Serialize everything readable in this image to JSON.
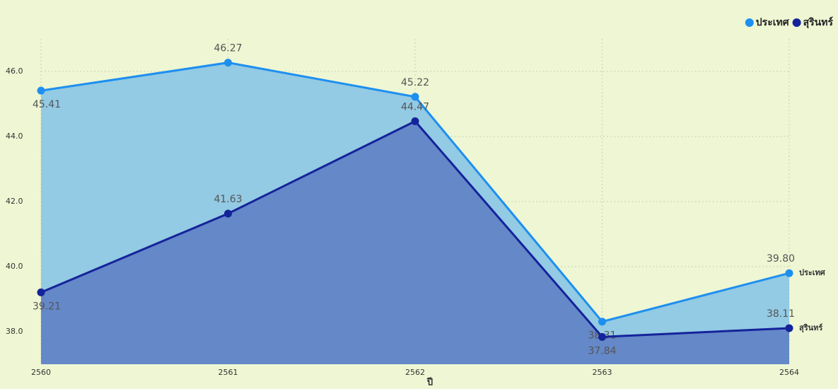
{
  "chart_data": {
    "type": "area",
    "x_label": "ปี",
    "categories": [
      "2560",
      "2561",
      "2562",
      "2563",
      "2564"
    ],
    "series": [
      {
        "name": "ประเทศ",
        "color": "#1e8fef",
        "fill": "#93cae4",
        "values": [
          45.41,
          46.27,
          45.22,
          38.31,
          39.8
        ],
        "value_labels": [
          "45.41",
          "46.27",
          "45.22",
          "38.31",
          "39.80"
        ]
      },
      {
        "name": "สุรินทร์",
        "color": "#15239a",
        "fill": "#6488c8",
        "values": [
          39.21,
          41.63,
          44.47,
          37.84,
          38.11
        ],
        "value_labels": [
          "39.21",
          "41.63",
          "44.47",
          "37.84",
          "38.11"
        ]
      }
    ],
    "ylim": [
      37,
      47
    ],
    "yticks": [
      {
        "value": 38,
        "label": "38.0"
      },
      {
        "value": 40,
        "label": "40.0"
      },
      {
        "value": 42,
        "label": "42.0"
      },
      {
        "value": 44,
        "label": "44.0"
      },
      {
        "value": 46,
        "label": "46.0"
      }
    ],
    "grid": true,
    "legend": "top-right",
    "background": "#eef6d3"
  }
}
